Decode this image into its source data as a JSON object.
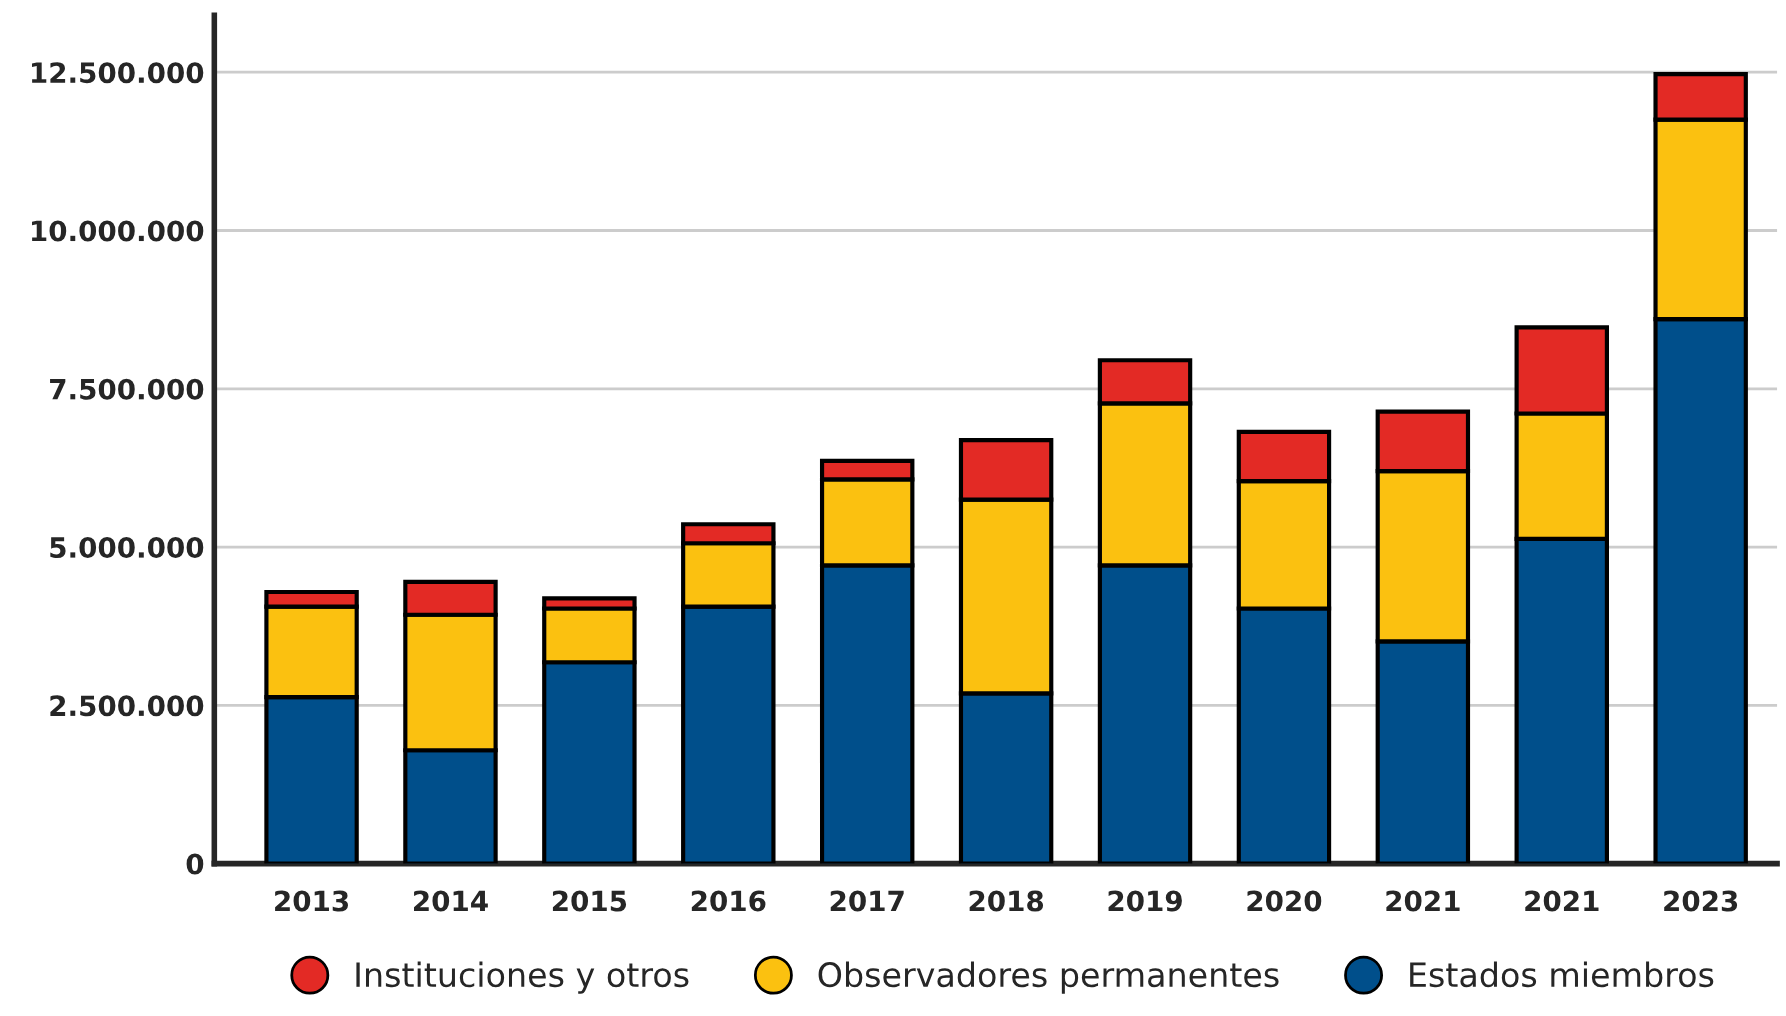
{
  "chart_data": {
    "type": "bar",
    "stacked": true,
    "categories": [
      "2013",
      "2014",
      "2015",
      "2016",
      "2017",
      "2018",
      "2019",
      "2020",
      "2021",
      "2021",
      "2023"
    ],
    "series": [
      {
        "name": "Estados miembros",
        "color": "#004f8b",
        "values": [
          2630000,
          1790000,
          3180000,
          4060000,
          4710000,
          2690000,
          4710000,
          4030000,
          3510000,
          5130000,
          8600000
        ]
      },
      {
        "name": "Observadores permanentes",
        "color": "#fbc110",
        "values": [
          1430000,
          2140000,
          850000,
          1000000,
          1360000,
          3060000,
          2560000,
          2010000,
          2690000,
          1980000,
          3150000
        ]
      },
      {
        "name": "Instituciones y otros",
        "color": "#e32a25",
        "values": [
          230000,
          520000,
          160000,
          300000,
          290000,
          940000,
          680000,
          780000,
          940000,
          1360000,
          720000
        ]
      }
    ],
    "ylim": [
      0,
      13400000
    ],
    "yticks": [
      0,
      {
        "value": 2500000,
        "label": "2.500.000"
      },
      {
        "value": 5000000,
        "label": "5.000.000"
      },
      {
        "value": 7500000,
        "label": "7.500.000"
      },
      {
        "value": 10000000,
        "label": "10.000.000"
      },
      {
        "value": 12500000,
        "label": "12.500.000"
      }
    ],
    "grid": "y",
    "legend": "bottom"
  }
}
